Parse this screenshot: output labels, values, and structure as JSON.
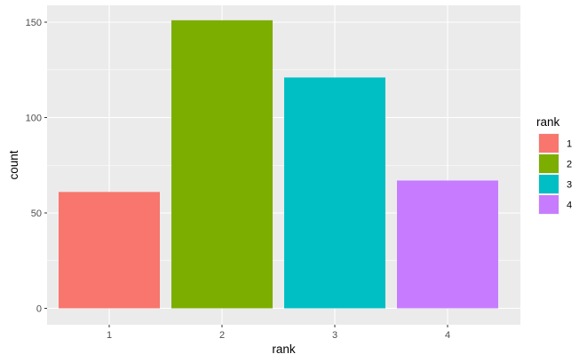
{
  "chart_data": {
    "type": "bar",
    "categories": [
      "1",
      "2",
      "3",
      "4"
    ],
    "values": [
      61,
      151,
      121,
      67
    ],
    "colors": [
      "#F8766D",
      "#7CAE00",
      "#00BFC4",
      "#C77CFF"
    ],
    "xlabel": "rank",
    "ylabel": "count",
    "ylim": [
      0,
      158
    ],
    "yticks": [
      0,
      50,
      100,
      150
    ],
    "ytick_labels": [
      "0",
      "50",
      "100",
      "150"
    ],
    "grid": true,
    "legend": {
      "title": "rank",
      "position": "right",
      "items": [
        {
          "label": "1",
          "color": "#F8766D"
        },
        {
          "label": "2",
          "color": "#7CAE00"
        },
        {
          "label": "3",
          "color": "#00BFC4"
        },
        {
          "label": "4",
          "color": "#C77CFF"
        }
      ]
    },
    "panel_background": "#EBEBEB",
    "grid_color": "#FFFFFF"
  }
}
